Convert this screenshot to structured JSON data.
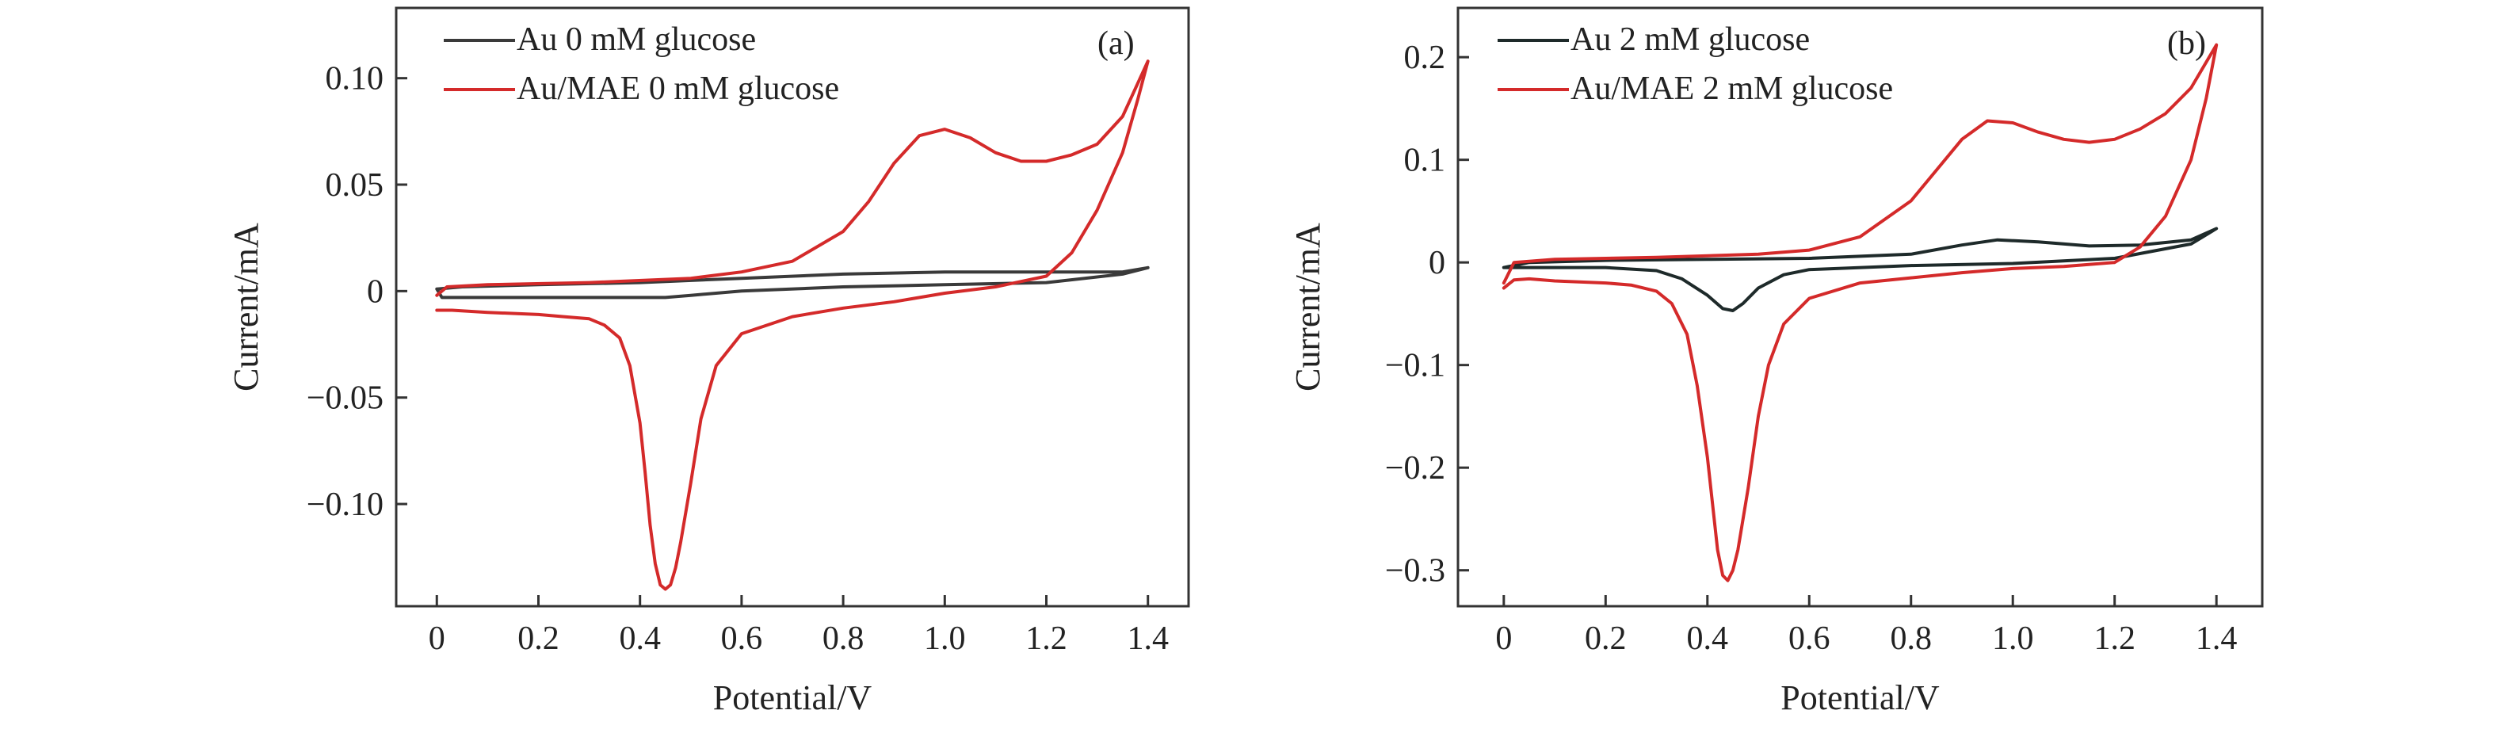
{
  "chart_data": [
    {
      "type": "line",
      "panel_label": "(a)",
      "xlabel": "Potential/V",
      "ylabel": "Current/mA",
      "xlim": [
        -0.08,
        1.48
      ],
      "ylim": [
        -0.148,
        0.133
      ],
      "xticks": [
        0,
        0.2,
        0.4,
        0.6,
        0.8,
        1.0,
        1.2,
        1.4
      ],
      "xtick_labels": [
        "0",
        "0.2",
        "0.4",
        "0.6",
        "0.8",
        "1.0",
        "1.2",
        "1.4"
      ],
      "yticks": [
        -0.1,
        -0.05,
        0,
        0.05,
        0.1
      ],
      "ytick_labels": [
        "−0.10",
        "−0.05",
        "0",
        "0.05",
        "0.10"
      ],
      "legend_position": "top-left",
      "series": [
        {
          "name": "Au 0 mM glucose",
          "color": "#3a3a3a",
          "x": [
            0,
            0.05,
            0.2,
            0.4,
            0.6,
            0.8,
            1.0,
            1.2,
            1.35,
            1.4,
            1.35,
            1.2,
            1.0,
            0.8,
            0.6,
            0.5,
            0.45,
            0.4,
            0.2,
            0.05,
            0.01,
            0
          ],
          "y": [
            0.001,
            0.002,
            0.003,
            0.004,
            0.006,
            0.008,
            0.009,
            0.009,
            0.009,
            0.011,
            0.008,
            0.004,
            0.003,
            0.002,
            0.0,
            -0.002,
            -0.003,
            -0.003,
            -0.003,
            -0.003,
            -0.003,
            0.001
          ]
        },
        {
          "name": "Au/MAE 0 mM glucose",
          "color": "#d42a2a",
          "x": [
            0,
            0.02,
            0.1,
            0.3,
            0.5,
            0.6,
            0.7,
            0.8,
            0.85,
            0.9,
            0.95,
            1.0,
            1.05,
            1.1,
            1.15,
            1.2,
            1.25,
            1.3,
            1.35,
            1.4,
            1.38,
            1.35,
            1.3,
            1.25,
            1.2,
            1.1,
            1.0,
            0.9,
            0.8,
            0.7,
            0.6,
            0.55,
            0.52,
            0.5,
            0.48,
            0.47,
            0.46,
            0.45,
            0.44,
            0.43,
            0.42,
            0.41,
            0.4,
            0.38,
            0.36,
            0.33,
            0.3,
            0.25,
            0.2,
            0.1,
            0.03,
            0
          ],
          "y": [
            -0.002,
            0.002,
            0.003,
            0.004,
            0.006,
            0.009,
            0.014,
            0.028,
            0.042,
            0.06,
            0.073,
            0.076,
            0.072,
            0.065,
            0.061,
            0.061,
            0.064,
            0.069,
            0.082,
            0.108,
            0.09,
            0.065,
            0.038,
            0.018,
            0.007,
            0.002,
            -0.001,
            -0.005,
            -0.008,
            -0.012,
            -0.02,
            -0.035,
            -0.06,
            -0.09,
            -0.118,
            -0.13,
            -0.138,
            -0.14,
            -0.138,
            -0.128,
            -0.11,
            -0.085,
            -0.062,
            -0.035,
            -0.022,
            -0.016,
            -0.013,
            -0.012,
            -0.011,
            -0.01,
            -0.009,
            -0.009
          ]
        }
      ]
    },
    {
      "type": "line",
      "panel_label": "(b)",
      "xlabel": "Potential/V",
      "ylabel": "Current/mA",
      "xlim": [
        -0.09,
        1.49
      ],
      "ylim": [
        -0.335,
        0.248
      ],
      "xticks": [
        0,
        0.2,
        0.4,
        0.6,
        0.8,
        1.0,
        1.2,
        1.4
      ],
      "xtick_labels": [
        "0",
        "0.2",
        "0.4",
        "0.6",
        "0.8",
        "1.0",
        "1.2",
        "1.4"
      ],
      "yticks": [
        -0.3,
        -0.2,
        -0.1,
        0,
        0.1,
        0.2
      ],
      "ytick_labels": [
        "−0.3",
        "−0.2",
        "−0.1",
        "0",
        "0.1",
        "0.2"
      ],
      "legend_position": "top-left",
      "series": [
        {
          "name": "Au 2 mM glucose",
          "color": "#1e2a2a",
          "x": [
            0,
            0.05,
            0.2,
            0.4,
            0.6,
            0.8,
            0.9,
            0.97,
            1.05,
            1.15,
            1.25,
            1.35,
            1.4,
            1.35,
            1.2,
            1.0,
            0.8,
            0.6,
            0.55,
            0.5,
            0.47,
            0.45,
            0.43,
            0.4,
            0.35,
            0.3,
            0.2,
            0.1,
            0.02,
            0
          ],
          "y": [
            -0.005,
            0.0,
            0.002,
            0.003,
            0.004,
            0.008,
            0.017,
            0.022,
            0.02,
            0.016,
            0.017,
            0.022,
            0.033,
            0.018,
            0.004,
            -0.001,
            -0.003,
            -0.007,
            -0.012,
            -0.025,
            -0.04,
            -0.047,
            -0.045,
            -0.032,
            -0.016,
            -0.008,
            -0.005,
            -0.005,
            -0.005,
            -0.005
          ]
        },
        {
          "name": "Au/MAE 2 mM glucose",
          "color": "#d42a2a",
          "x": [
            0,
            0.02,
            0.1,
            0.3,
            0.5,
            0.6,
            0.7,
            0.8,
            0.85,
            0.9,
            0.95,
            1.0,
            1.05,
            1.1,
            1.15,
            1.2,
            1.25,
            1.3,
            1.35,
            1.4,
            1.38,
            1.35,
            1.3,
            1.25,
            1.2,
            1.1,
            1.0,
            0.9,
            0.8,
            0.7,
            0.6,
            0.55,
            0.52,
            0.5,
            0.48,
            0.46,
            0.45,
            0.44,
            0.43,
            0.42,
            0.41,
            0.4,
            0.38,
            0.36,
            0.33,
            0.3,
            0.25,
            0.2,
            0.1,
            0.05,
            0.02,
            0
          ],
          "y": [
            -0.02,
            0.0,
            0.003,
            0.005,
            0.008,
            0.012,
            0.025,
            0.06,
            0.09,
            0.12,
            0.138,
            0.136,
            0.127,
            0.12,
            0.117,
            0.12,
            0.13,
            0.145,
            0.17,
            0.212,
            0.16,
            0.1,
            0.045,
            0.015,
            0.0,
            -0.004,
            -0.006,
            -0.01,
            -0.015,
            -0.02,
            -0.035,
            -0.06,
            -0.1,
            -0.15,
            -0.22,
            -0.28,
            -0.3,
            -0.31,
            -0.305,
            -0.28,
            -0.235,
            -0.19,
            -0.12,
            -0.07,
            -0.04,
            -0.028,
            -0.022,
            -0.02,
            -0.018,
            -0.016,
            -0.017,
            -0.025
          ]
        }
      ]
    }
  ]
}
